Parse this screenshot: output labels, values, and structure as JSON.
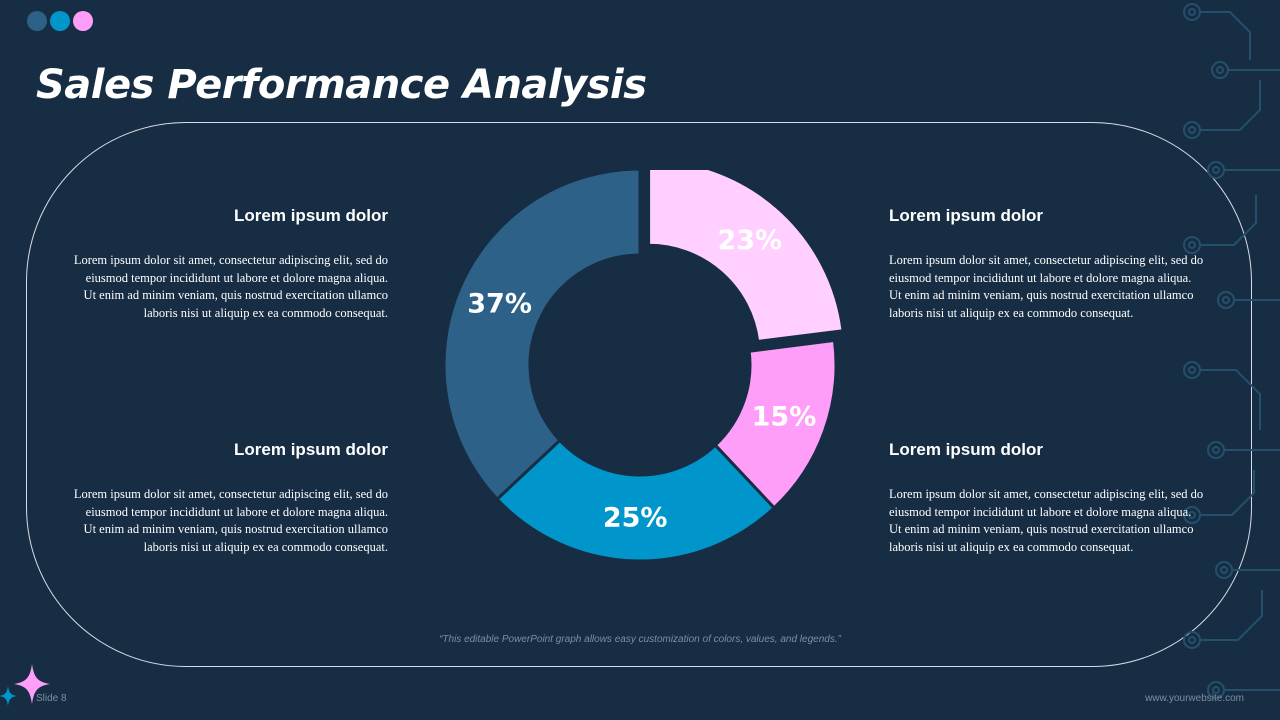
{
  "slide": {
    "title": "Sales Performance Analysis",
    "caption": "“This editable PowerPoint graph allows easy customization of colors, values, and legends.”",
    "slide_number": "Slide 8",
    "website": "www.yourwebsite.com"
  },
  "dot_colors": [
    "#2d6188",
    "#0096cc",
    "#ff9ef9"
  ],
  "blocks": {
    "top_left": {
      "heading": "Lorem ipsum dolor",
      "line1": "Lorem ipsum dolor sit amet, consectetur adipiscing elit, sed do eiusmod tempor incididunt ut labore et dolore magna aliqua.",
      "line2": "Ut enim ad minim veniam, quis nostrud exercitation ullamco laboris nisi ut aliquip ex ea commodo consequat."
    },
    "bottom_left": {
      "heading": "Lorem ipsum dolor",
      "line1": "Lorem ipsum dolor sit amet, consectetur adipiscing elit, sed do eiusmod tempor incididunt ut labore et dolore magna aliqua.",
      "line2": "Ut enim ad minim veniam, quis nostrud exercitation ullamco laboris nisi ut aliquip ex ea commodo consequat."
    },
    "top_right": {
      "heading": "Lorem ipsum dolor",
      "line1": "Lorem ipsum dolor sit amet, consectetur adipiscing elit, sed do eiusmod tempor incididunt ut labore et dolore magna aliqua.",
      "line2": "Ut enim ad minim veniam, quis nostrud exercitation ullamco laboris nisi ut aliquip ex ea commodo consequat."
    },
    "bottom_right": {
      "heading": "Lorem ipsum dolor",
      "line1": "Lorem ipsum dolor sit amet, consectetur adipiscing elit, sed do eiusmod tempor incididunt ut labore et dolore magna aliqua.",
      "line2": "Ut enim ad minim veniam, quis nostrud exercitation ullamco laboris nisi ut aliquip ex ea commodo consequat."
    }
  },
  "chart_data": {
    "type": "pie",
    "variant": "donut",
    "title": "",
    "slices": [
      {
        "label": "23%",
        "value": 23,
        "color": "#ffd0ff",
        "exploded": true
      },
      {
        "label": "15%",
        "value": 15,
        "color": "#ff9ef9",
        "exploded": false
      },
      {
        "label": "25%",
        "value": 25,
        "color": "#0096cc",
        "exploded": false
      },
      {
        "label": "37%",
        "value": 37,
        "color": "#2d6188",
        "exploded": false
      }
    ]
  }
}
